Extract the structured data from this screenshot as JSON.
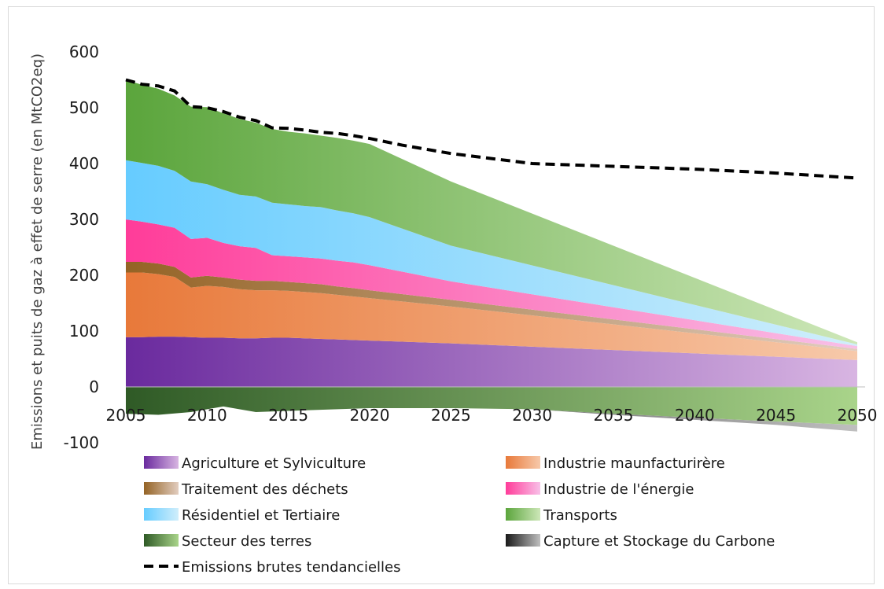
{
  "chart_data": {
    "type": "area",
    "title": "",
    "xlabel": "",
    "ylabel": "Emissions et puits de gaz à effet de serre (en MtCO2eq)",
    "x_ticks": [
      2005,
      2010,
      2015,
      2020,
      2025,
      2030,
      2035,
      2040,
      2045,
      2050
    ],
    "y_ticks": [
      -100,
      0,
      100,
      200,
      300,
      400,
      500,
      600
    ],
    "xlim": [
      2005,
      2050
    ],
    "ylim": [
      -100,
      620
    ],
    "grid": false,
    "legend_position": "bottom",
    "stack_years": [
      2005,
      2006,
      2007,
      2008,
      2009,
      2010,
      2011,
      2012,
      2013,
      2014,
      2015,
      2016,
      2017,
      2018,
      2019,
      2020,
      2025,
      2050
    ],
    "series": [
      {
        "name": "Agriculture et Sylviculture",
        "color_dark": "#6a2a9e",
        "color_light": "#d8b5e2",
        "values": [
          89,
          89,
          90,
          90,
          89,
          88,
          88,
          87,
          87,
          88,
          88,
          87,
          86,
          85,
          84,
          83,
          78,
          48
        ]
      },
      {
        "name": "Industrie maunfacturirère",
        "color_dark": "#e8793a",
        "color_light": "#f7c9aa",
        "values": [
          116,
          116,
          112,
          107,
          89,
          93,
          91,
          88,
          86,
          85,
          84,
          83,
          82,
          80,
          78,
          76,
          66,
          16
        ]
      },
      {
        "name": "Traitement des déchets",
        "color_dark": "#946325",
        "color_light": "#e2cdbf",
        "values": [
          19,
          19,
          19,
          18,
          18,
          18,
          17,
          17,
          17,
          17,
          16,
          16,
          16,
          15,
          15,
          14,
          12,
          4
        ]
      },
      {
        "name": "Industrie de l'énergie",
        "color_dark": "#ff3c99",
        "color_light": "#f8c0e8",
        "values": [
          76,
          72,
          70,
          70,
          69,
          68,
          62,
          60,
          59,
          46,
          46,
          46,
          46,
          46,
          46,
          45,
          33,
          5
        ]
      },
      {
        "name": "Résidentiel et Tertiaire",
        "color_dark": "#66ccff",
        "color_light": "#d0eefb",
        "values": [
          106,
          105,
          105,
          102,
          103,
          96,
          95,
          92,
          92,
          94,
          93,
          92,
          92,
          90,
          88,
          86,
          64,
          3
        ]
      },
      {
        "name": "Transports",
        "color_dark": "#5ba53c",
        "color_light": "#cde7b8",
        "values": [
          144,
          140,
          138,
          135,
          134,
          138,
          137,
          136,
          132,
          132,
          130,
          130,
          128,
          130,
          130,
          131,
          115,
          4
        ]
      }
    ],
    "negative_series": [
      {
        "name": "Secteur des terres",
        "color_dark": "#2f5a26",
        "color_light": "#a9d48a",
        "years": [
          2005,
          2007,
          2009,
          2011,
          2013,
          2015,
          2020,
          2025,
          2030,
          2035,
          2040,
          2045,
          2050
        ],
        "values": [
          -48,
          -50,
          -45,
          -35,
          -45,
          -43,
          -38,
          -38,
          -40,
          -48,
          -55,
          -62,
          -68
        ]
      },
      {
        "name": "Capture et Stockage du Carbone",
        "color_dark": "#1a1a1a",
        "color_light": "#bfbfbf",
        "years": [
          2005,
          2030,
          2035,
          2040,
          2045,
          2050
        ],
        "values": [
          0,
          0,
          -2,
          -4,
          -6,
          -12
        ]
      }
    ],
    "trend_line": {
      "name": "Emissions brutes tendancielles",
      "years": [
        2005,
        2006,
        2007,
        2008,
        2009,
        2010,
        2011,
        2012,
        2013,
        2014,
        2015,
        2016,
        2017,
        2018,
        2019,
        2020,
        2022,
        2025,
        2030,
        2035,
        2040,
        2045,
        2050
      ],
      "values": [
        550,
        542,
        539,
        530,
        502,
        500,
        493,
        483,
        477,
        464,
        463,
        460,
        456,
        454,
        450,
        445,
        433,
        418,
        400,
        395,
        390,
        383,
        374
      ]
    },
    "legend_order": [
      "Agriculture et Sylviculture",
      "Industrie maunfacturirère",
      "Traitement des déchets",
      "Industrie de l'énergie",
      "Résidentiel et Tertiaire",
      "Transports",
      "Secteur des terres",
      "Capture et Stockage du Carbone",
      "Emissions brutes tendancielles"
    ]
  }
}
